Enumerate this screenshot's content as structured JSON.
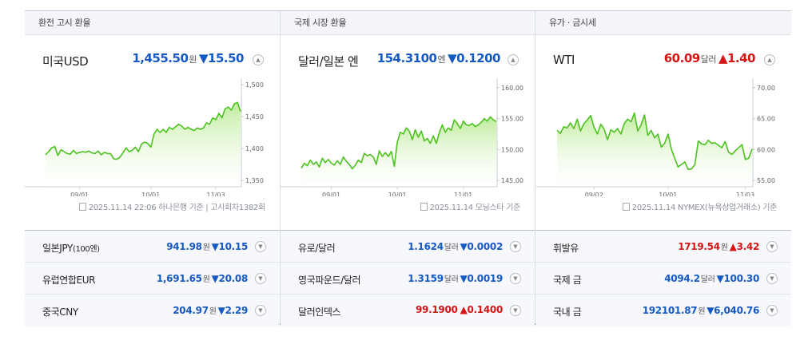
{
  "panels": [
    {
      "header": "환전 고시 환율",
      "main": {
        "name": "미국USD",
        "value": "1,455.50",
        "unit": "원",
        "change": "▼15.50",
        "dir": "down"
      },
      "source": "2025.11.14 22:06 하나은행 기준 | 고시회차1382회",
      "rows": [
        {
          "name": "일본JPY",
          "name_sub": "(100엔)",
          "value": "941.98",
          "unit": "원",
          "change": "▼10.15",
          "dir": "down"
        },
        {
          "name": "유럽연합EUR",
          "name_sub": "",
          "value": "1,691.65",
          "unit": "원",
          "change": "▼20.08",
          "dir": "down"
        },
        {
          "name": "중국CNY",
          "name_sub": "",
          "value": "204.97",
          "unit": "원",
          "change": "▼2.29",
          "dir": "down"
        }
      ]
    },
    {
      "header": "국제 시장 환율",
      "main": {
        "name": "달러/일본 엔",
        "value": "154.3100",
        "unit": "엔",
        "change": "▼0.1200",
        "dir": "down"
      },
      "source": "2025.11.14 모닝스타 기준",
      "rows": [
        {
          "name": "유로/달러",
          "name_sub": "",
          "value": "1.1624",
          "unit": "달러",
          "change": "▼0.0002",
          "dir": "down"
        },
        {
          "name": "영국파운드/달러",
          "name_sub": "",
          "value": "1.3159",
          "unit": "달러",
          "change": "▼0.0019",
          "dir": "down"
        },
        {
          "name": "달러인덱스",
          "name_sub": "",
          "value": "99.1900",
          "unit": "",
          "change": "▲0.1400",
          "dir": "up"
        }
      ]
    },
    {
      "header": "유가 · 금시세",
      "main": {
        "name": "WTI",
        "value": "60.09",
        "unit": "달러",
        "change": "▲1.40",
        "dir": "up"
      },
      "source": "2025.11.14 NYMEX(뉴욕상업거래소) 기준",
      "rows": [
        {
          "name": "휘발유",
          "name_sub": "",
          "value": "1719.54",
          "unit": "원",
          "change": "▲3.42",
          "dir": "up"
        },
        {
          "name": "국제 금",
          "name_sub": "",
          "value": "4094.2",
          "unit": "달러",
          "change": "▼100.30",
          "dir": "down"
        },
        {
          "name": "국내 금",
          "name_sub": "",
          "value": "192101.87",
          "unit": "원",
          "change": "▼6,040.76",
          "dir": "down"
        }
      ]
    }
  ],
  "chart_data": [
    {
      "type": "area",
      "color": "#4cc21f",
      "xticks": [
        {
          "label": "09/01",
          "i": 11
        },
        {
          "label": "10/01",
          "i": 34
        },
        {
          "label": "11/03",
          "i": 55
        }
      ],
      "ylim": [
        1340,
        1505
      ],
      "yticks": [
        "1,500",
        "1,450",
        "1,400",
        "1,350"
      ],
      "ytick_values": [
        1500,
        1450,
        1400,
        1350
      ],
      "values": [
        1390,
        1395,
        1401,
        1403,
        1389,
        1398,
        1395,
        1392,
        1391,
        1397,
        1392,
        1394,
        1395,
        1394,
        1396,
        1393,
        1392,
        1396,
        1390,
        1394,
        1392,
        1392,
        1384,
        1383,
        1386,
        1393,
        1401,
        1395,
        1397,
        1402,
        1395,
        1407,
        1410,
        1408,
        1402,
        1422,
        1430,
        1425,
        1430,
        1425,
        1433,
        1430,
        1434,
        1438,
        1435,
        1430,
        1433,
        1430,
        1428,
        1432,
        1430,
        1432,
        1440,
        1438,
        1448,
        1445,
        1455,
        1448,
        1462,
        1465,
        1460,
        1470,
        1472,
        1458
      ]
    },
    {
      "type": "area",
      "color": "#4cc21f",
      "xticks": [
        {
          "label": "09/01",
          "i": 10
        },
        {
          "label": "10/01",
          "i": 32
        },
        {
          "label": "11/01",
          "i": 54
        }
      ],
      "ylim": [
        144,
        161
      ],
      "yticks": [
        "160.00",
        "155.00",
        "150.00",
        "145.00"
      ],
      "ytick_values": [
        160,
        155,
        150,
        145
      ],
      "values": [
        147.0,
        147.8,
        147.4,
        148.3,
        147.6,
        148.0,
        147.2,
        148.6,
        147.9,
        148.4,
        147.8,
        147.5,
        148.2,
        147.6,
        148.8,
        148.1,
        147.6,
        146.9,
        147.5,
        148.3,
        147.9,
        149.4,
        149.0,
        149.2,
        148.8,
        147.6,
        149.8,
        148.9,
        149.5,
        148.9,
        149.7,
        147.3,
        151.2,
        152.8,
        152.5,
        153.5,
        153.0,
        151.6,
        153.2,
        152.0,
        153.0,
        151.4,
        151.8,
        151.0,
        152.2,
        151.0,
        152.7,
        154.0,
        152.8,
        153.5,
        153.1,
        154.8,
        154.2,
        153.4,
        154.6,
        154.0,
        153.9,
        154.2,
        153.7,
        154.0,
        154.4,
        155.0,
        154.6,
        155.3,
        154.8,
        154.5
      ]
    },
    {
      "type": "area",
      "color": "#4cc21f",
      "xticks": [
        {
          "label": "09/02",
          "i": 11
        },
        {
          "label": "10/01",
          "i": 33
        },
        {
          "label": "11/03",
          "i": 56
        }
      ],
      "ylim": [
        54,
        71
      ],
      "yticks": [
        "70.00",
        "65.00",
        "60.00",
        "55.00"
      ],
      "ytick_values": [
        70,
        65,
        60,
        55
      ],
      "values": [
        63.1,
        62.6,
        63.7,
        63.5,
        64.3,
        63.4,
        64.9,
        63.0,
        64.2,
        64.8,
        65.5,
        63.6,
        62.5,
        64.1,
        63.3,
        61.6,
        63.2,
        62.8,
        63.4,
        62.5,
        64.2,
        64.9,
        64.5,
        65.9,
        63.0,
        64.0,
        65.6,
        62.3,
        63.1,
        61.9,
        62.5,
        60.4,
        61.0,
        62.5,
        60.1,
        58.6,
        57.2,
        57.6,
        58.0,
        56.8,
        56.9,
        57.6,
        61.4,
        60.9,
        60.8,
        61.5,
        61.0,
        61.1,
        60.7,
        60.3,
        61.3,
        59.6,
        59.2,
        59.8,
        60.3,
        60.8,
        58.4,
        58.6,
        60.1
      ]
    }
  ]
}
